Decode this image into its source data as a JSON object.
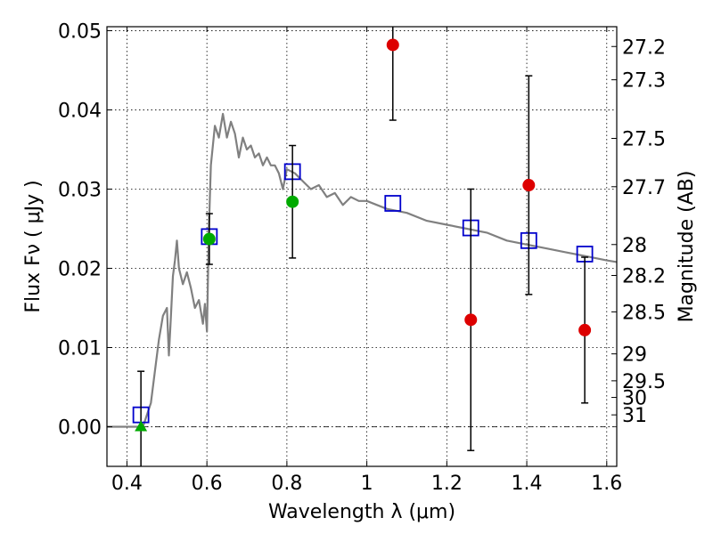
{
  "chart_data": {
    "type": "scatter",
    "title": "",
    "xlabel": "Wavelength  λ (μm)",
    "ylabel": "Flux  Fν  ( μJy )",
    "ylabel_right": "Magnitude (AB)",
    "xlim": [
      0.35,
      1.625
    ],
    "ylim": [
      -0.005,
      0.0505
    ],
    "grid": true,
    "x_ticks": [
      0.4,
      0.6,
      0.8,
      1.0,
      1.2,
      1.4,
      1.6
    ],
    "x_tick_labels": [
      "0.4",
      "0.6",
      "0.8",
      "1",
      "1.2",
      "1.4",
      "1.6"
    ],
    "y_ticks": [
      0.0,
      0.01,
      0.02,
      0.03,
      0.04,
      0.05
    ],
    "y_tick_labels": [
      "0.00",
      "0.01",
      "0.02",
      "0.03",
      "0.04",
      "0.05"
    ],
    "right_ticks": [
      {
        "label": "27.2",
        "flux": 0.048
      },
      {
        "label": "27.3",
        "flux": 0.0438
      },
      {
        "label": "27.5",
        "flux": 0.0364
      },
      {
        "label": "27.7",
        "flux": 0.0303
      },
      {
        "label": "28",
        "flux": 0.023
      },
      {
        "label": "28.2",
        "flux": 0.0191
      },
      {
        "label": "28.5",
        "flux": 0.0145
      },
      {
        "label": "29",
        "flux": 0.0092
      },
      {
        "label": "29.5",
        "flux": 0.0058
      },
      {
        "label": "30",
        "flux": 0.0037
      },
      {
        "label": "31",
        "flux": 0.0015
      }
    ],
    "series": [
      {
        "marker": "line",
        "color": "#808080",
        "x": [
          0.35,
          0.44,
          0.46,
          0.47,
          0.48,
          0.49,
          0.5,
          0.505,
          0.51,
          0.515,
          0.52,
          0.525,
          0.53,
          0.54,
          0.55,
          0.56,
          0.57,
          0.58,
          0.59,
          0.595,
          0.6,
          0.605,
          0.61,
          0.62,
          0.63,
          0.64,
          0.65,
          0.66,
          0.67,
          0.68,
          0.69,
          0.7,
          0.71,
          0.72,
          0.73,
          0.74,
          0.75,
          0.76,
          0.77,
          0.78,
          0.79,
          0.8,
          0.82,
          0.84,
          0.86,
          0.88,
          0.9,
          0.92,
          0.94,
          0.96,
          0.98,
          1.0,
          1.05,
          1.1,
          1.15,
          1.2,
          1.25,
          1.3,
          1.35,
          1.4,
          1.45,
          1.5,
          1.55,
          1.6,
          1.625
        ],
        "y": [
          0.0,
          0.0,
          0.003,
          0.007,
          0.011,
          0.014,
          0.015,
          0.009,
          0.014,
          0.019,
          0.021,
          0.0235,
          0.02,
          0.018,
          0.0195,
          0.0175,
          0.015,
          0.016,
          0.013,
          0.0155,
          0.012,
          0.025,
          0.033,
          0.038,
          0.0365,
          0.0395,
          0.0365,
          0.0385,
          0.037,
          0.034,
          0.0365,
          0.035,
          0.0355,
          0.034,
          0.0345,
          0.033,
          0.034,
          0.033,
          0.033,
          0.032,
          0.03,
          0.0325,
          0.032,
          0.031,
          0.03,
          0.0305,
          0.029,
          0.0295,
          0.028,
          0.029,
          0.0285,
          0.0285,
          0.0275,
          0.027,
          0.026,
          0.0255,
          0.025,
          0.0245,
          0.0235,
          0.023,
          0.0225,
          0.022,
          0.0215,
          0.021,
          0.0208
        ]
      },
      {
        "marker": "open-square",
        "color": "#0000cc",
        "x": [
          0.435,
          0.606,
          0.814,
          1.065,
          1.26,
          1.405,
          1.545
        ],
        "y": [
          0.0015,
          0.024,
          0.0322,
          0.0282,
          0.0251,
          0.0235,
          0.0218
        ]
      },
      {
        "marker": "circle",
        "color": "#dd0000",
        "x": [
          1.065,
          1.26,
          1.405,
          1.545
        ],
        "y": [
          0.0482,
          0.0135,
          0.0305,
          0.0122
        ],
        "yerr": [
          0.0095,
          0.0165,
          0.0138,
          0.0092
        ]
      },
      {
        "marker": "circle",
        "color": "#00aa00",
        "x": [
          0.606,
          0.814
        ],
        "y": [
          0.0237,
          0.0284
        ],
        "yerr": [
          0.0032,
          0.0071
        ]
      },
      {
        "marker": "triangle",
        "color": "#00aa00",
        "x": [
          0.435
        ],
        "y": [
          0.0
        ],
        "yerr": [
          0.007
        ]
      }
    ]
  }
}
